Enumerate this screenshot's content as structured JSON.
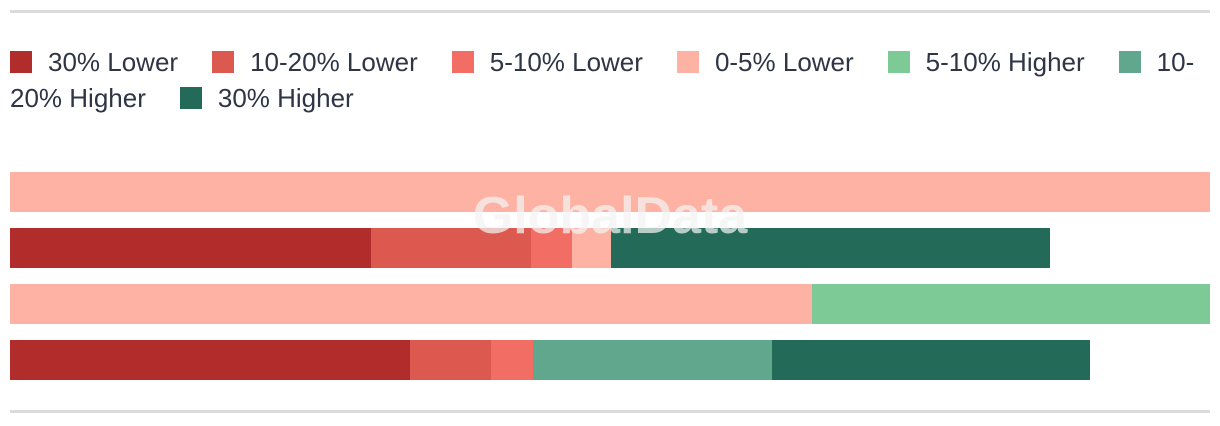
{
  "watermark": "GlobalData",
  "colors": {
    "text": "#2f3545",
    "divider": "#dcdcdc",
    "categories": {
      "30% Lower": "#b12d2c",
      "10-20% Lower": "#dc5950",
      "5-10% Lower": "#f26d64",
      "0-5% Lower": "#fdb2a3",
      "5-10% Higher": "#7dca97",
      "10-20% Higher": "#60a78e",
      "30% Higher": "#236b58"
    }
  },
  "chart_data": {
    "type": "bar",
    "orientation": "horizontal",
    "stacked": true,
    "unit": "percent",
    "xlim": [
      0,
      100
    ],
    "grid": false,
    "axes_visible": false,
    "legend_position": "top",
    "legend": [
      "30% Lower",
      "10-20% Lower",
      "5-10% Lower",
      "0-5% Lower",
      "5-10% Higher",
      "10-20% Higher",
      "30% Higher"
    ],
    "bars": [
      {
        "segments": [
          {
            "category": "0-5% Lower",
            "value": 100
          }
        ]
      },
      {
        "segments": [
          {
            "category": "30% Lower",
            "value": 30.1
          },
          {
            "category": "10-20% Lower",
            "value": 13.3
          },
          {
            "category": "5-10% Lower",
            "value": 3.4
          },
          {
            "category": "0-5% Lower",
            "value": 3.3
          },
          {
            "category": "30% Higher",
            "value": 36.6
          }
        ]
      },
      {
        "segments": [
          {
            "category": "0-5% Lower",
            "value": 66.8
          },
          {
            "category": "5-10% Higher",
            "value": 33.2
          }
        ]
      },
      {
        "segments": [
          {
            "category": "30% Lower",
            "value": 33.3
          },
          {
            "category": "10-20% Lower",
            "value": 6.8
          },
          {
            "category": "5-10% Lower",
            "value": 3.5
          },
          {
            "category": "10-20% Higher",
            "value": 19.9
          },
          {
            "category": "30% Higher",
            "value": 26.5
          }
        ]
      }
    ]
  }
}
